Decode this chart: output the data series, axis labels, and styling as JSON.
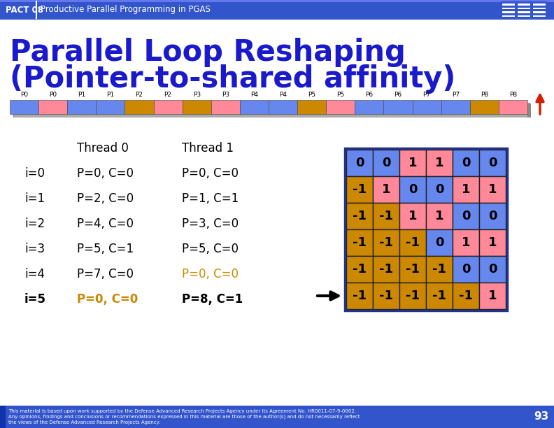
{
  "header_text": "PACT 08",
  "header_subtitle": "Productive Parallel Programming in PGAS",
  "title_line1": "Parallel Loop Reshaping",
  "title_line2": "(Pointer-to-shared affinity)",
  "bg_color": "#f0f0f0",
  "header_bg": "#3355cc",
  "title_color": "#1a1acc",
  "bar_labels": [
    "P0",
    "P0",
    "P1",
    "P1",
    "P2",
    "P2",
    "P3",
    "P3",
    "P4",
    "P4",
    "P5",
    "P5",
    "P6",
    "P6",
    "P7",
    "P7",
    "P8",
    "P8"
  ],
  "bar_cell_colors": [
    "#6688ee",
    "#ff8899",
    "#6688ee",
    "#6688ee",
    "#cc8800",
    "#ff8899",
    "#cc8800",
    "#ff8899",
    "#6688ee",
    "#6688ee",
    "#cc8800",
    "#ff8899",
    "#6688ee",
    "#6688ee",
    "#6688ee",
    "#6688ee",
    "#cc8800",
    "#ff8899"
  ],
  "thread_rows": [
    "",
    "i=0",
    "i=1",
    "i=2",
    "i=3",
    "i=4",
    "i=5"
  ],
  "thread_col0": [
    "Thread 0",
    "P=0, C=0",
    "P=2, C=0",
    "P=4, C=0",
    "P=5, C=1",
    "P=7, C=0",
    "P=0, C=0"
  ],
  "thread_col1": [
    "Thread 1",
    "P=0, C=0",
    "P=1, C=1",
    "P=3, C=0",
    "P=5, C=0",
    "P=0, C=0",
    "P=8, C=1"
  ],
  "thread_col0_highlight": [
    false,
    false,
    false,
    false,
    false,
    false,
    true
  ],
  "thread_col1_highlight": [
    false,
    false,
    false,
    false,
    false,
    true,
    false
  ],
  "thread_row_bold": [
    false,
    false,
    false,
    false,
    false,
    false,
    true
  ],
  "matrix_values": [
    [
      0,
      0,
      1,
      1,
      0,
      0
    ],
    [
      -1,
      1,
      0,
      0,
      1,
      1
    ],
    [
      -1,
      -1,
      1,
      1,
      0,
      0
    ],
    [
      -1,
      -1,
      -1,
      0,
      1,
      1
    ],
    [
      -1,
      -1,
      -1,
      -1,
      0,
      0
    ],
    [
      -1,
      -1,
      -1,
      -1,
      -1,
      1
    ]
  ],
  "matrix_colors": [
    [
      "blue",
      "blue",
      "pink",
      "pink",
      "blue",
      "blue"
    ],
    [
      "orange",
      "pink",
      "blue",
      "blue",
      "pink",
      "pink"
    ],
    [
      "orange",
      "orange",
      "pink",
      "pink",
      "blue",
      "blue"
    ],
    [
      "orange",
      "orange",
      "orange",
      "blue",
      "pink",
      "pink"
    ],
    [
      "orange",
      "orange",
      "orange",
      "orange",
      "blue",
      "blue"
    ],
    [
      "orange",
      "orange",
      "orange",
      "orange",
      "orange",
      "pink"
    ]
  ],
  "color_map": {
    "blue": "#6688ee",
    "pink": "#ff8899",
    "orange": "#cc8800"
  },
  "highlight_color": "#cc8800",
  "page_num": "93",
  "footer_text1": "This material is based upon work supported by the Defense Advanced Research Projects Agency under its Agreement No. HR0011-07-9-0002.",
  "footer_text2": "Any opinions, findings and conclusions or recommendations expressed in this material are those of the author(s) and do not necessarily reflect",
  "footer_text3": "the views of the Defense Advanced Research Projects Agency."
}
